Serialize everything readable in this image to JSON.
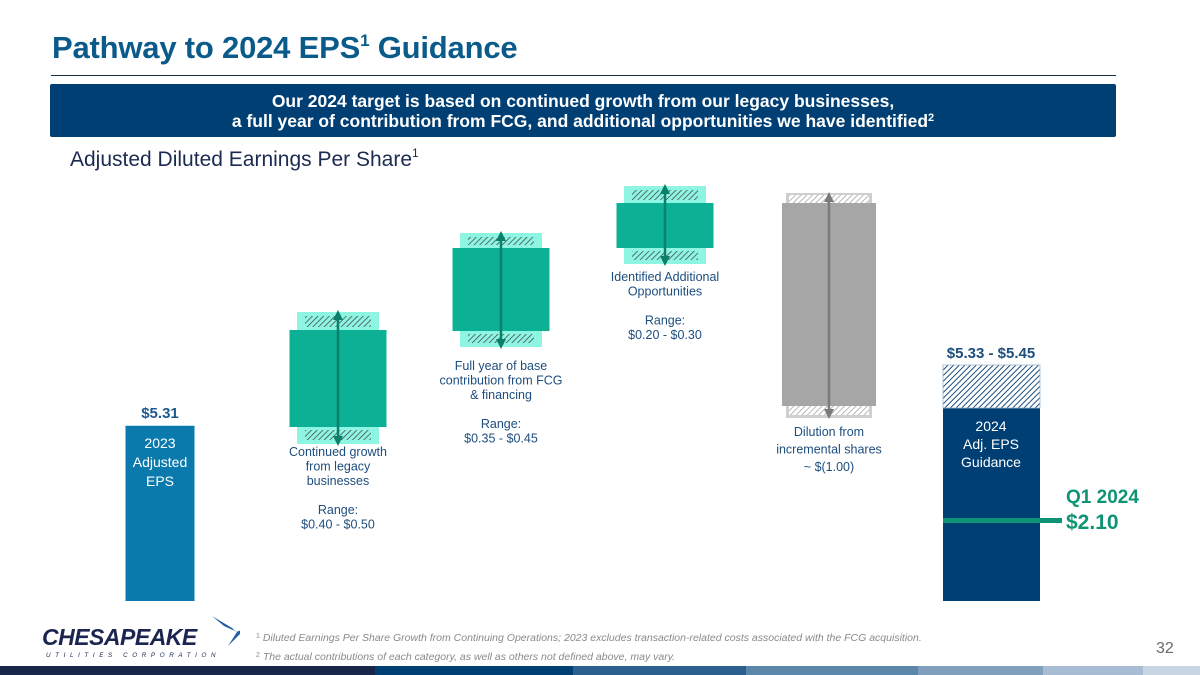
{
  "slide": {
    "title": "Pathway to 2024 EPS",
    "title_sup": "1",
    "title_suffix": " Guidance",
    "banner_line1": "Our 2024 target is based on continued growth from our legacy businesses,",
    "banner_line2": "a full year of contribution from FCG, and additional opportunities we have identified",
    "banner_sup": "2",
    "subtitle": "Adjusted Diluted Earnings Per Share",
    "subtitle_sup": "1",
    "footnote1_num": "1",
    "footnote1": "Diluted Earnings Per Share Growth from Continuing Operations; 2023 excludes transaction-related costs associated with the FCG acquisition.",
    "footnote2_num": "2",
    "footnote2": "The actual contributions of each category, as well as others not defined above, may vary.",
    "page_number": "32",
    "logo_name": "CHESAPEAKE",
    "logo_tagline": "UTILITIES CORPORATION"
  },
  "colors": {
    "title": "#0a5a8a",
    "banner": "#003f74",
    "bar_2023": "#0a7aad",
    "bar_increase": "#0bb095",
    "range_cap": "#8ef5e2",
    "bar_dilution": "#a6a6a6",
    "bar_2024": "#003f74",
    "q1_marker": "#0e9474",
    "label_text": "#1d4e7e"
  },
  "chart_data": {
    "type": "waterfall",
    "title": "Pathway to 2024 EPS Guidance",
    "ylabel": "Adjusted Diluted Earnings Per Share",
    "ylim": [
      0,
      5.9
    ],
    "bars": [
      {
        "name": "2023 Adjusted EPS",
        "kind": "total",
        "value": 5.31,
        "value_label": "$5.31",
        "inner_label": [
          "2023",
          "Adjusted",
          "EPS"
        ],
        "inner_sup": "1"
      },
      {
        "name": "Continued growth from legacy businesses",
        "kind": "increase",
        "low": 0.4,
        "high": 0.5,
        "label_lines": [
          "Continued growth",
          "from legacy",
          "businesses",
          "",
          "Range:",
          "$0.40 - $0.50"
        ]
      },
      {
        "name": "Full year of base contribution from FCG & financing",
        "kind": "increase",
        "low": 0.35,
        "high": 0.45,
        "label_lines": [
          "Full year of base",
          "contribution from FCG",
          "& financing",
          "",
          "Range:",
          "$0.35 - $0.45"
        ]
      },
      {
        "name": "Identified Additional Opportunities",
        "kind": "increase",
        "low": 0.2,
        "high": 0.3,
        "label_lines": [
          "Identified Additional",
          "Opportunities",
          "",
          "Range:",
          "$0.20 - $0.30"
        ]
      },
      {
        "name": "Dilution from incremental shares",
        "kind": "decrease",
        "low": 1.0,
        "high": 1.0,
        "label_lines": [
          "Dilution from",
          "incremental shares",
          "~ $(1.00)"
        ]
      },
      {
        "name": "2024 Adj. EPS Guidance",
        "kind": "total_range",
        "low": 5.33,
        "high": 5.45,
        "value_label": "$5.33 - $5.45",
        "inner_label": [
          "2024",
          "Adj. EPS",
          "Guidance"
        ],
        "inner_sup": "1"
      }
    ],
    "annotation": {
      "label_line1": "Q1 2024",
      "label_line2": "$2.10",
      "value": 2.1
    }
  }
}
